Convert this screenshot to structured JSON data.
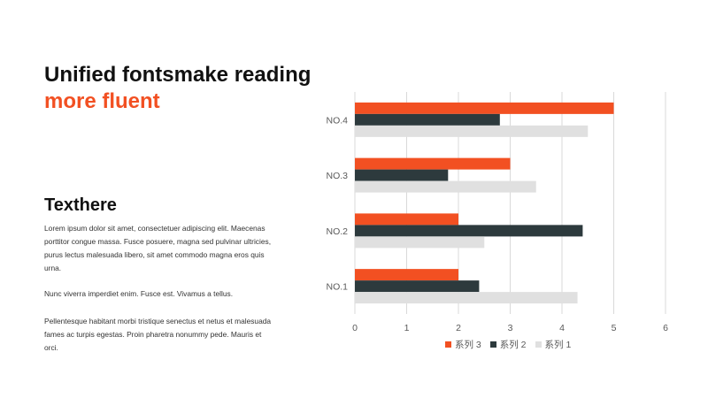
{
  "heading": {
    "line1": "Unified fontsmake reading",
    "line2": "more fluent"
  },
  "section": {
    "title": "Texthere",
    "paragraphs": [
      "Lorem ipsum dolor sit amet, consectetuer adipiscing elit. Maecenas porttitor congue massa. Fusce posuere, magna sed pulvinar ultricies, purus lectus malesuada libero, sit amet commodo magna eros quis urna.",
      "Nunc viverra imperdiet enim. Fusce est. Vivamus a tellus.",
      "Pellentesque habitant morbi tristique senectus et netus et malesuada fames ac turpis egestas. Proin pharetra nonummy pede. Mauris et orci."
    ]
  },
  "colors": {
    "accent": "#f25022",
    "dark": "#2d3a3d",
    "light": "#e0e0e0",
    "grid": "#d9d9d9",
    "text": "#595959"
  },
  "chart_data": {
    "type": "bar",
    "orientation": "horizontal",
    "categories": [
      "NO.1",
      "NO.2",
      "NO.3",
      "NO.4"
    ],
    "series": [
      {
        "name": "系列 3",
        "values": [
          2,
          2,
          3,
          5
        ],
        "color": "#f25022"
      },
      {
        "name": "系列 2",
        "values": [
          2.4,
          4.4,
          1.8,
          2.8
        ],
        "color": "#2d3a3d"
      },
      {
        "name": "系列 1",
        "values": [
          4.3,
          2.5,
          3.5,
          4.5
        ],
        "color": "#e0e0e0"
      }
    ],
    "xlim": [
      0,
      6
    ],
    "xticks": [
      "0",
      "1",
      "2",
      "3",
      "4",
      "5",
      "6"
    ],
    "grid": true,
    "legend_position": "bottom"
  }
}
